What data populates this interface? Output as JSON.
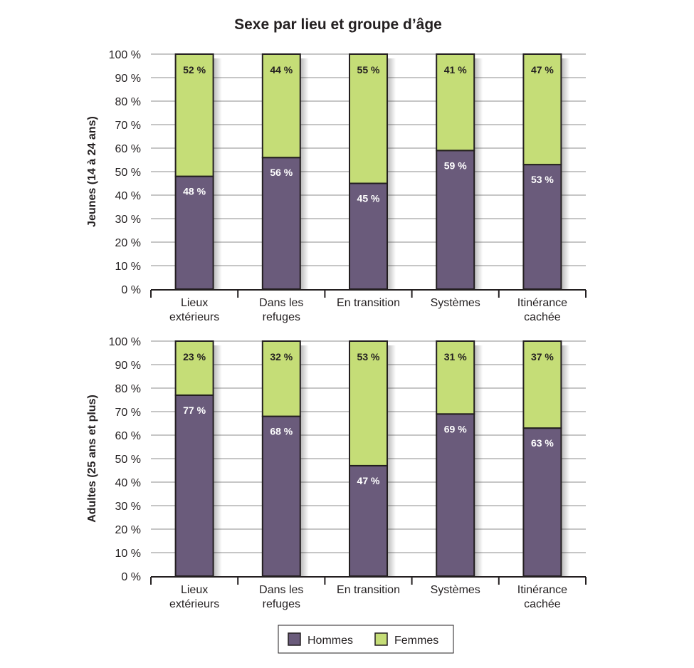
{
  "chart_data": {
    "type": "stacked-bar",
    "title": "Sexe par lieu et groupe d’âge",
    "categories": [
      [
        "Lieux",
        "extérieurs"
      ],
      [
        "Dans les",
        "refuges"
      ],
      [
        "En transition"
      ],
      [
        "Systèmes"
      ],
      [
        "Itinérance",
        "cachée"
      ]
    ],
    "ylim": [
      0,
      100
    ],
    "yticks": [
      "0 %",
      "10 %",
      "20 %",
      "30 %",
      "40 %",
      "50 %",
      "60 %",
      "70 %",
      "80 %",
      "90 %",
      "100 %"
    ],
    "legend": [
      {
        "name": "Hommes",
        "color": "#6a5b7b"
      },
      {
        "name": "Femmes",
        "color": "#c5dd77"
      }
    ],
    "panels": [
      {
        "ylabel": "Jeunes (14 à 24 ans)",
        "series": [
          {
            "name": "Hommes",
            "values": [
              48,
              56,
              45,
              59,
              53
            ],
            "labels": [
              "48 %",
              "56 %",
              "45 %",
              "59 %",
              "53 %"
            ]
          },
          {
            "name": "Femmes",
            "values": [
              52,
              44,
              55,
              41,
              47
            ],
            "labels": [
              "52 %",
              "44 %",
              "55 %",
              "41 %",
              "47 %"
            ]
          }
        ]
      },
      {
        "ylabel": "Adultes (25 ans et plus)",
        "series": [
          {
            "name": "Hommes",
            "values": [
              77,
              68,
              47,
              69,
              63
            ],
            "labels": [
              "77 %",
              "68 %",
              "47 %",
              "69 %",
              "63 %"
            ]
          },
          {
            "name": "Femmes",
            "values": [
              23,
              32,
              53,
              31,
              37
            ],
            "labels": [
              "23 %",
              "32 %",
              "53 %",
              "31 %",
              "37 %"
            ]
          }
        ]
      }
    ]
  }
}
